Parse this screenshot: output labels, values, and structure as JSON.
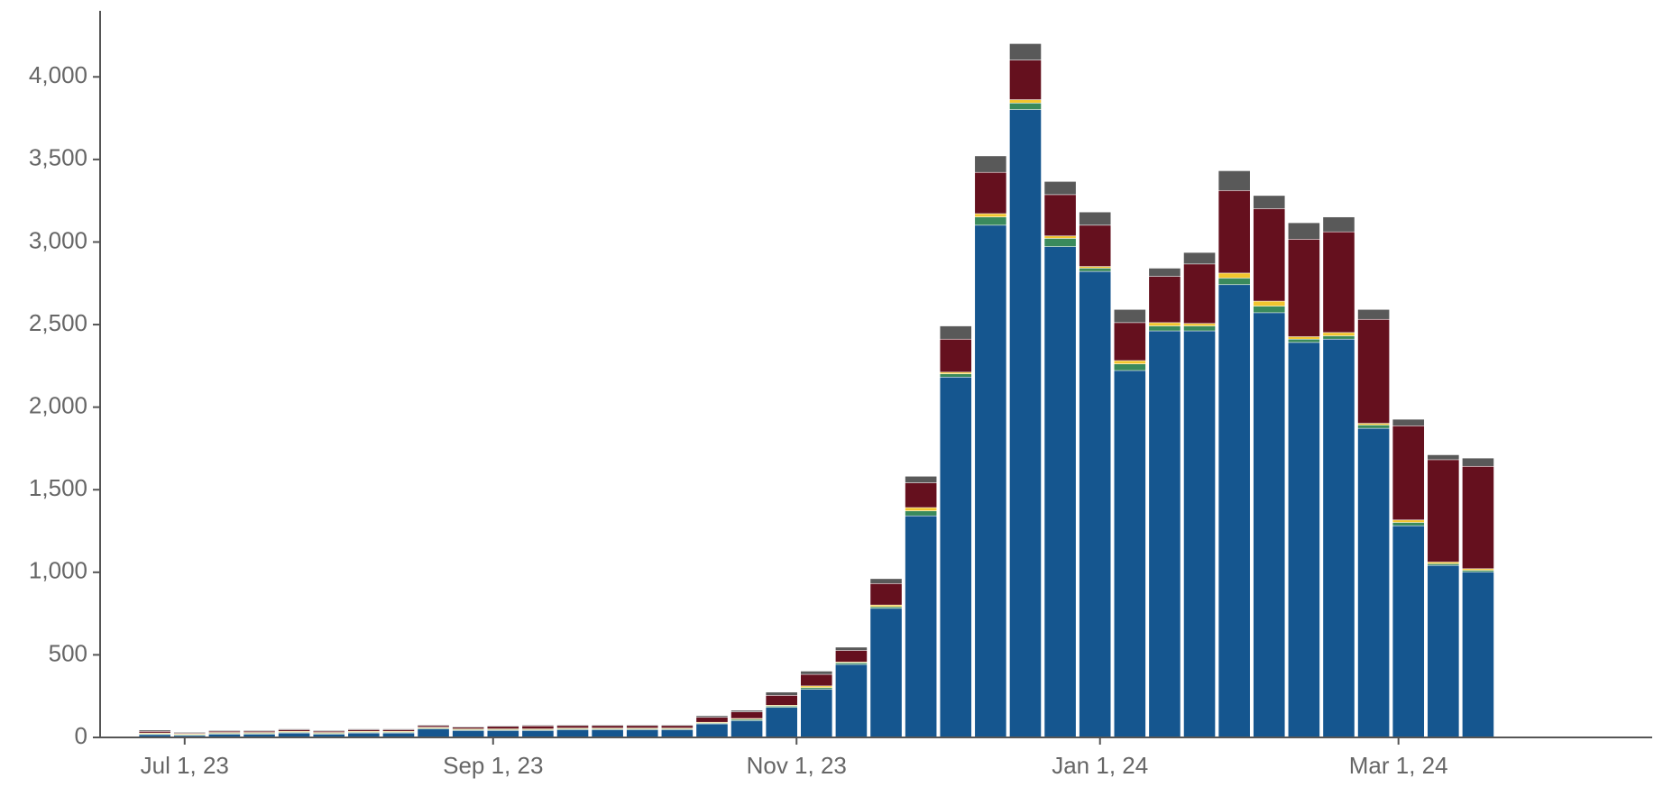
{
  "chart_data": {
    "type": "bar",
    "stacked": true,
    "title": "",
    "xlabel": "",
    "ylabel": "",
    "ylim": [
      0,
      4400
    ],
    "xlim": [
      "2023-06-14",
      "2024-04-21"
    ],
    "grid": false,
    "legend": "none",
    "bin_days": 7,
    "x_ticks": [
      {
        "date": "2023-07-01",
        "label": "Jul 1, 23"
      },
      {
        "date": "2023-09-01",
        "label": "Sep 1, 23"
      },
      {
        "date": "2023-11-01",
        "label": "Nov 1, 23"
      },
      {
        "date": "2024-01-01",
        "label": "Jan 1, 24"
      },
      {
        "date": "2024-03-01",
        "label": "Mar 1, 24"
      }
    ],
    "y_ticks": [
      {
        "value": 0,
        "label": "0"
      },
      {
        "value": 500,
        "label": "500"
      },
      {
        "value": 1000,
        "label": "1,000"
      },
      {
        "value": 1500,
        "label": "1,500"
      },
      {
        "value": 2000,
        "label": "2,000"
      },
      {
        "value": 2500,
        "label": "2,500"
      },
      {
        "value": 3000,
        "label": "3,000"
      },
      {
        "value": 3500,
        "label": "3,500"
      },
      {
        "value": 4000,
        "label": "4,000"
      }
    ],
    "x": [
      "2023-06-25",
      "2023-07-02",
      "2023-07-09",
      "2023-07-16",
      "2023-07-23",
      "2023-07-30",
      "2023-08-06",
      "2023-08-13",
      "2023-08-20",
      "2023-08-27",
      "2023-09-03",
      "2023-09-10",
      "2023-09-17",
      "2023-09-24",
      "2023-10-01",
      "2023-10-08",
      "2023-10-15",
      "2023-10-22",
      "2023-10-29",
      "2023-11-05",
      "2023-11-12",
      "2023-11-19",
      "2023-11-26",
      "2023-12-03",
      "2023-12-10",
      "2023-12-17",
      "2023-12-24",
      "2023-12-31",
      "2024-01-07",
      "2024-01-14",
      "2024-01-21",
      "2024-01-28",
      "2024-02-04",
      "2024-02-11",
      "2024-02-18",
      "2024-02-25",
      "2024-03-03",
      "2024-03-10",
      "2024-03-17",
      "2024-03-24"
    ],
    "series": [
      {
        "color": "#15568f",
        "values": [
          15,
          10,
          18,
          18,
          25,
          18,
          25,
          25,
          50,
          40,
          40,
          40,
          45,
          45,
          45,
          45,
          80,
          100,
          180,
          290,
          440,
          780,
          1340,
          2180,
          3100,
          3800,
          2970,
          2820,
          2220,
          2460,
          2460,
          2740,
          2570,
          2390,
          2410,
          1870,
          1280,
          1040,
          1000,
          0
        ]
      },
      {
        "color": "#3a8a5c",
        "values": [
          5,
          5,
          5,
          5,
          5,
          5,
          5,
          5,
          5,
          5,
          5,
          5,
          5,
          5,
          5,
          5,
          5,
          8,
          8,
          10,
          10,
          10,
          30,
          20,
          50,
          40,
          50,
          20,
          40,
          30,
          30,
          40,
          40,
          20,
          20,
          20,
          20,
          10,
          10,
          0
        ]
      },
      {
        "color": "#f2c52e",
        "values": [
          5,
          5,
          5,
          5,
          5,
          5,
          5,
          5,
          5,
          5,
          5,
          5,
          5,
          5,
          5,
          5,
          5,
          5,
          5,
          10,
          5,
          10,
          20,
          10,
          20,
          20,
          15,
          10,
          20,
          20,
          15,
          30,
          30,
          15,
          20,
          10,
          15,
          10,
          10,
          0
        ]
      },
      {
        "color": "#65101e",
        "values": [
          10,
          5,
          8,
          8,
          10,
          8,
          10,
          10,
          10,
          10,
          15,
          18,
          15,
          15,
          15,
          15,
          30,
          40,
          60,
          70,
          70,
          130,
          150,
          200,
          250,
          240,
          250,
          250,
          230,
          280,
          360,
          500,
          560,
          590,
          610,
          630,
          570,
          620,
          620,
          0
        ]
      },
      {
        "color": "#595959",
        "values": [
          8,
          5,
          5,
          5,
          5,
          5,
          5,
          5,
          5,
          5,
          5,
          5,
          5,
          5,
          5,
          5,
          10,
          10,
          20,
          20,
          20,
          30,
          40,
          80,
          100,
          100,
          80,
          80,
          80,
          50,
          70,
          120,
          80,
          100,
          90,
          60,
          40,
          30,
          50,
          0
        ]
      }
    ]
  }
}
